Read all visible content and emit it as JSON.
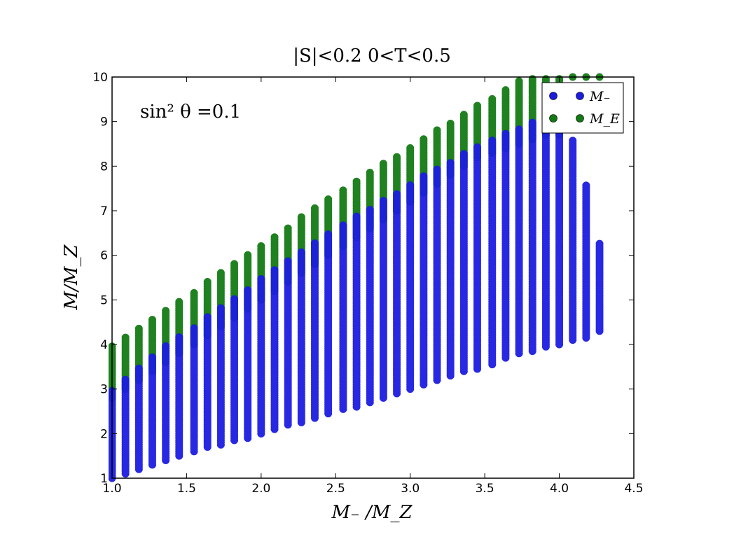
{
  "chart_data": {
    "type": "range",
    "title": "|S|<0.2     0<T<0.5",
    "annotation": "sin² θ =0.1",
    "xlabel": "M₋ /M_Z",
    "ylabel": "M/M_Z",
    "x": [
      1.0,
      1.09,
      1.18,
      1.27,
      1.36,
      1.45,
      1.55,
      1.64,
      1.73,
      1.82,
      1.91,
      2.0,
      2.09,
      2.18,
      2.27,
      2.36,
      2.45,
      2.55,
      2.64,
      2.73,
      2.82,
      2.91,
      3.0,
      3.09,
      3.18,
      3.27,
      3.36,
      3.45,
      3.55,
      3.64,
      3.73,
      3.82,
      3.91,
      4.0,
      4.09,
      4.18,
      4.27
    ],
    "series": [
      {
        "name": "M_E",
        "color": "#137a13",
        "low": [
          2.8,
          3.0,
          3.2,
          3.4,
          3.6,
          3.8,
          4.0,
          4.2,
          4.4,
          4.6,
          4.8,
          5.0,
          5.2,
          5.4,
          5.6,
          5.8,
          6.0,
          6.2,
          6.4,
          6.6,
          6.8,
          7.0,
          7.2,
          7.4,
          7.6,
          7.8,
          8.0,
          8.2,
          8.3,
          8.4,
          8.5,
          8.6,
          8.7,
          8.7,
          10,
          10,
          10
        ],
        "high": [
          4.0,
          4.2,
          4.4,
          4.6,
          4.8,
          5.0,
          5.2,
          5.45,
          5.65,
          5.85,
          6.05,
          6.25,
          6.45,
          6.65,
          6.9,
          7.1,
          7.3,
          7.5,
          7.7,
          7.9,
          8.1,
          8.25,
          8.45,
          8.65,
          8.85,
          9.0,
          9.2,
          9.4,
          9.55,
          9.75,
          9.95,
          10,
          10,
          10,
          10,
          10,
          10
        ]
      },
      {
        "name": "M₋",
        "color": "#1c1ce0",
        "low": [
          1.0,
          1.1,
          1.2,
          1.3,
          1.4,
          1.5,
          1.6,
          1.7,
          1.75,
          1.85,
          1.9,
          2.0,
          2.1,
          2.2,
          2.25,
          2.35,
          2.45,
          2.55,
          2.6,
          2.7,
          2.8,
          2.9,
          3.0,
          3.1,
          3.2,
          3.3,
          3.4,
          3.45,
          3.55,
          3.7,
          3.8,
          3.85,
          3.95,
          4.0,
          4.1,
          4.15,
          4.3
        ],
        "high": [
          3.0,
          3.25,
          3.5,
          3.75,
          4.0,
          4.2,
          4.4,
          4.65,
          4.85,
          5.05,
          5.25,
          5.5,
          5.7,
          5.9,
          6.1,
          6.3,
          6.5,
          6.7,
          6.9,
          7.05,
          7.25,
          7.4,
          7.6,
          7.8,
          7.95,
          8.1,
          8.3,
          8.45,
          8.6,
          8.75,
          8.85,
          9.0,
          9.05,
          9.0,
          8.6,
          7.6,
          6.3
        ]
      }
    ],
    "xlim": [
      1.0,
      4.5
    ],
    "ylim": [
      1,
      10
    ],
    "xticks": [
      {
        "value": 1.0,
        "label": "1.0"
      },
      {
        "value": 1.5,
        "label": "1.5"
      },
      {
        "value": 2.0,
        "label": "2.0"
      },
      {
        "value": 2.5,
        "label": "2.5"
      },
      {
        "value": 3.0,
        "label": "3.0"
      },
      {
        "value": 3.5,
        "label": "3.5"
      },
      {
        "value": 4.0,
        "label": "4.0"
      },
      {
        "value": 4.5,
        "label": "4.5"
      }
    ],
    "yticks": [
      1,
      2,
      3,
      4,
      5,
      6,
      7,
      8,
      9,
      10
    ],
    "legend": "upper right"
  }
}
